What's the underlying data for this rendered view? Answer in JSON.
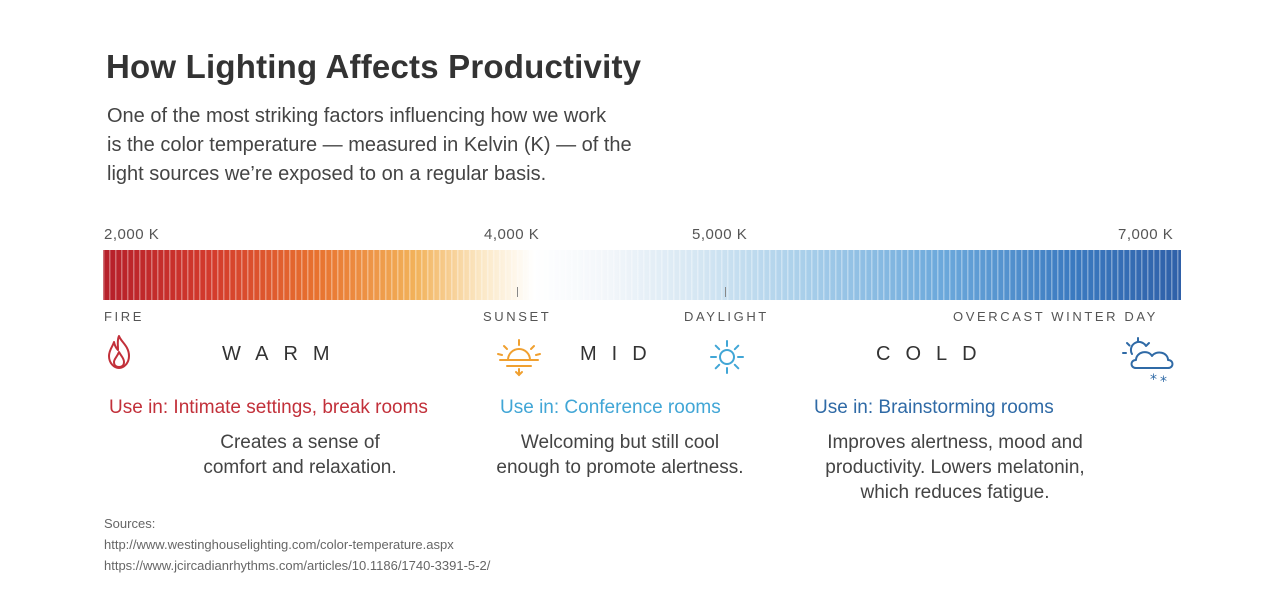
{
  "title": "How Lighting Affects Productivity",
  "intro": [
    "One of the most striking factors influencing how we work",
    "is the color temperature — measured in Kelvin (K) — of the",
    "light sources we’re exposed to on a regular basis."
  ],
  "scale": {
    "kelvin_labels": [
      "2,000 K",
      "4,000 K",
      "5,000 K",
      "7,000 K"
    ],
    "source_labels": [
      "FIRE",
      "SUNSET",
      "DAYLIGHT",
      "OVERCAST WINTER DAY"
    ]
  },
  "zones": [
    {
      "name": "WARM",
      "icon": "fire-icon",
      "use": "Use in: Intimate settings, break rooms",
      "desc": [
        "Creates a sense of",
        "comfort and relaxation."
      ],
      "color": "#c2303a"
    },
    {
      "name": "MID",
      "icon": "sunset-icon",
      "use": "Use in: Conference rooms",
      "desc": [
        "Welcoming but still cool",
        "enough to promote alertness."
      ],
      "color": "#41a6d6"
    },
    {
      "name": "COLD",
      "icon": "cloud-snow-icon",
      "use": "Use in: Brainstorming rooms",
      "desc": [
        "Improves alertness, mood and",
        "productivity. Lowers melatonin,",
        "which reduces fatigue."
      ],
      "color": "#2f6aa6"
    }
  ],
  "icons": {
    "fire_color": "#c2303a",
    "sunset_color": "#f0a030",
    "sun_color": "#41a6d6",
    "cloud_color": "#2f6aa6"
  },
  "sources": {
    "heading": "Sources:",
    "links": [
      "http://www.westinghouselighting.com/color-temperature.aspx",
      "https://www.jcircadianrhythms.com/articles/10.1186/1740-3391-5-2/"
    ]
  }
}
